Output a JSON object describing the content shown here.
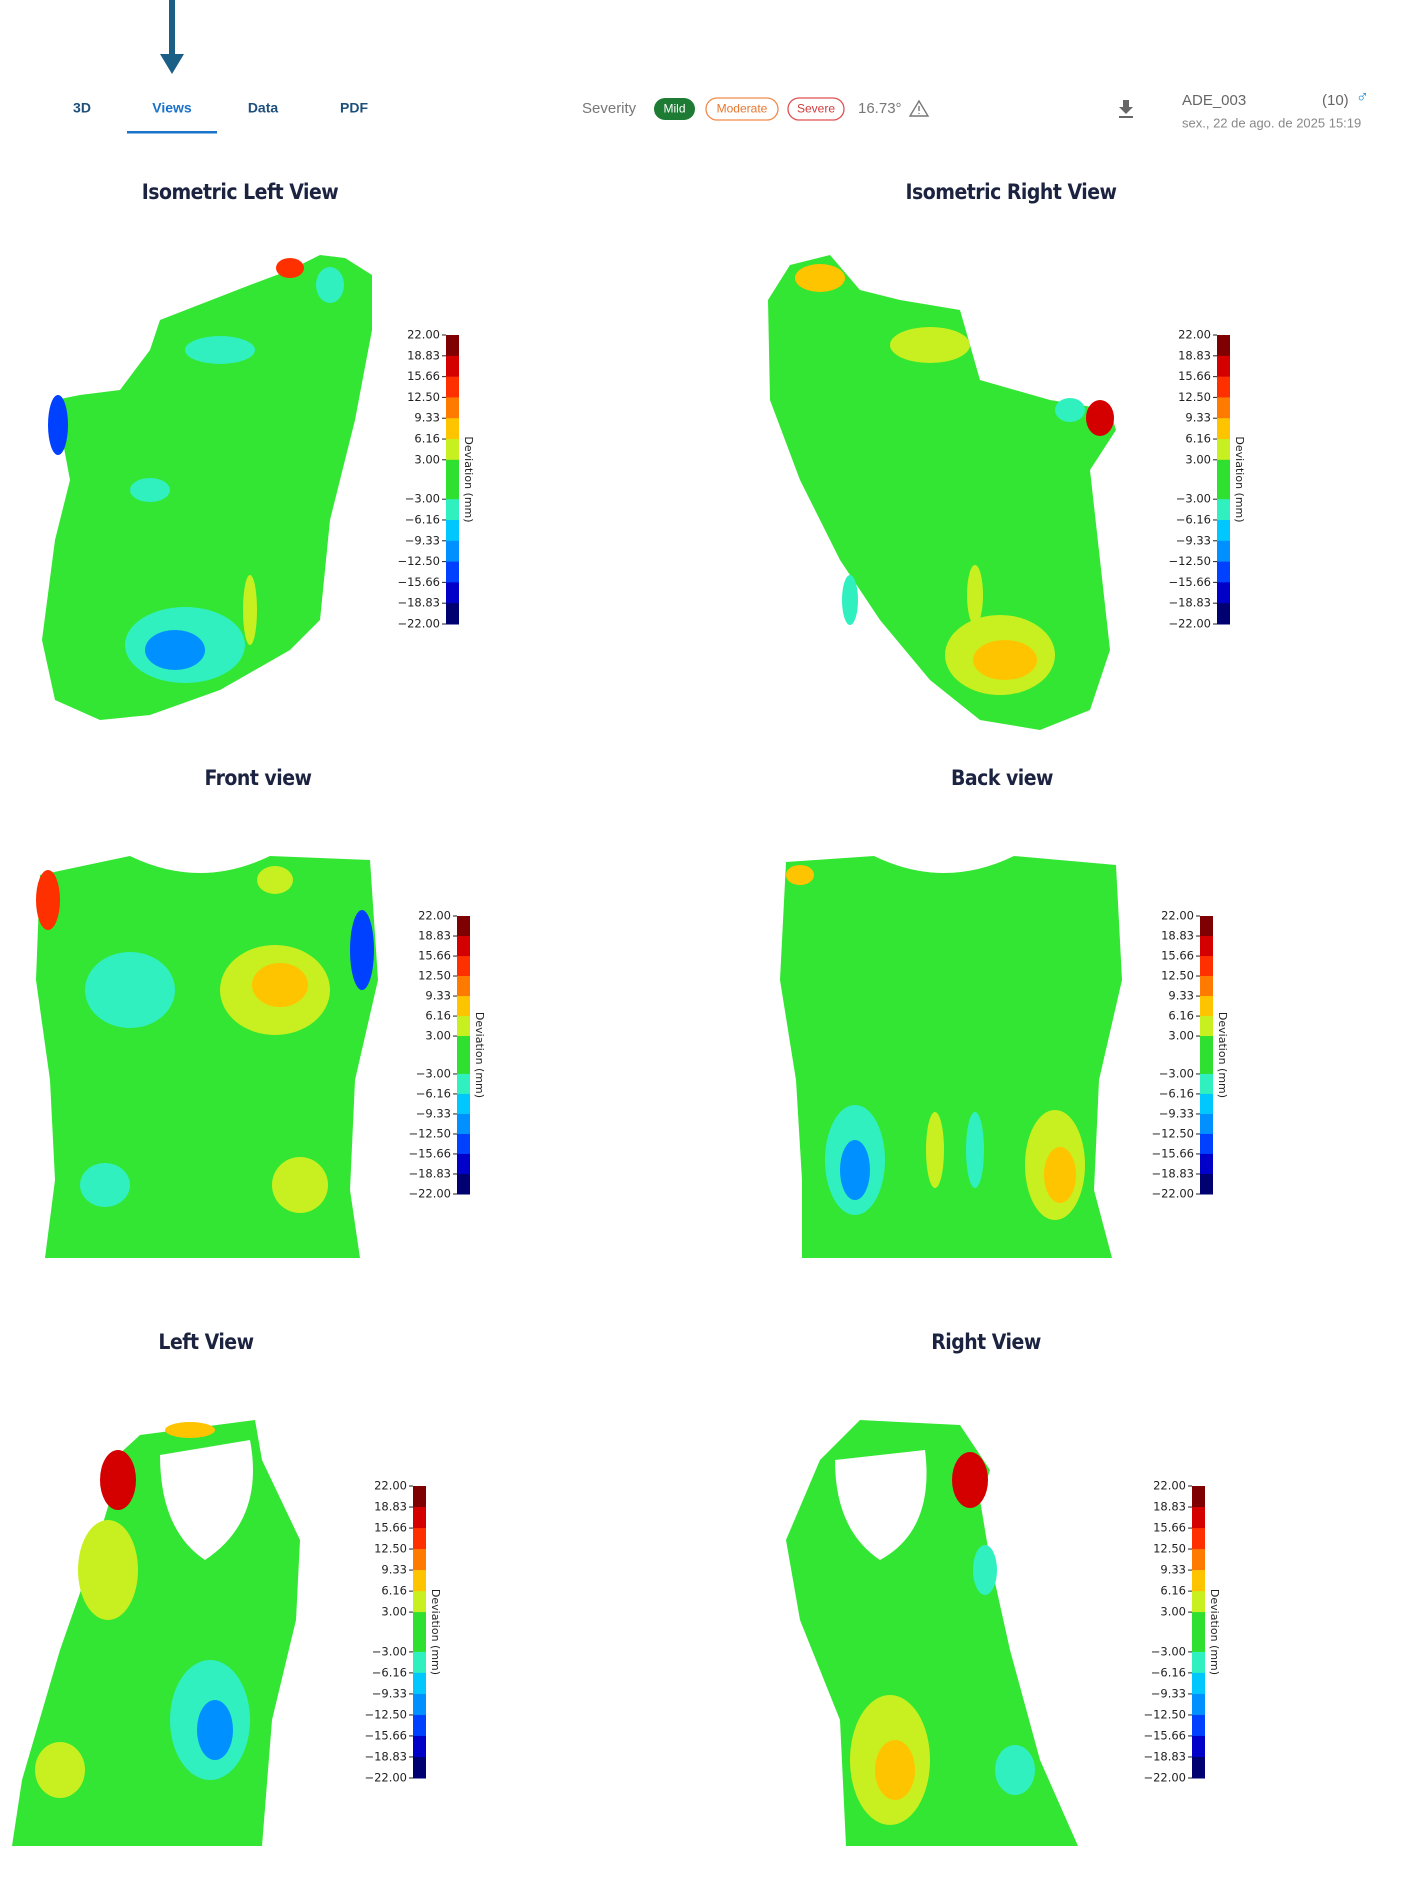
{
  "nav": {
    "tabs": [
      "3D",
      "Views",
      "Data",
      "PDF"
    ],
    "active": 1
  },
  "severity": {
    "label": "Severity",
    "levels": [
      "Mild",
      "Moderate",
      "Severe"
    ],
    "angle": "16.73°"
  },
  "patient": {
    "id": "ADE_003",
    "age": "(10)",
    "sex": "♂",
    "date": "sex., 22 de ago. de 2025 15:19"
  },
  "colorbar": {
    "label": "Deviation (mm)",
    "lim": [
      -22,
      22
    ],
    "ticks": [
      {
        "value": 22,
        "label": "22.00"
      },
      18.83,
      15.66,
      {
        "value": 12.5,
        "label": "12.50"
      },
      9.33,
      6.16,
      {
        "value": 3,
        "label": "3.00"
      },
      {
        "value": -3,
        "label": "−3.00"
      },
      {
        "value": -6.16,
        "label": "−6.16"
      },
      {
        "value": -9.33,
        "label": "−9.33"
      },
      {
        "value": -12.5,
        "label": "−12.50"
      },
      {
        "value": -15.66,
        "label": "−15.66"
      },
      {
        "value": -18.83,
        "label": "−18.83"
      },
      {
        "value": -22,
        "label": "−22.00"
      }
    ],
    "colors": [
      "#7f0000",
      "#d40000",
      "#ff3000",
      "#ff7a00",
      "#ffc400",
      "#c8f020",
      "#30e030",
      "#30f0c0",
      "#00c8ff",
      "#0090ff",
      "#0040ff",
      "#0000c8",
      "#000070"
    ]
  },
  "views": [
    {
      "title": "Isometric Left View"
    },
    {
      "title": "Isometric Right View"
    },
    {
      "title": "Front view"
    },
    {
      "title": "Back view"
    },
    {
      "title": "Left View"
    },
    {
      "title": "Right View"
    }
  ]
}
